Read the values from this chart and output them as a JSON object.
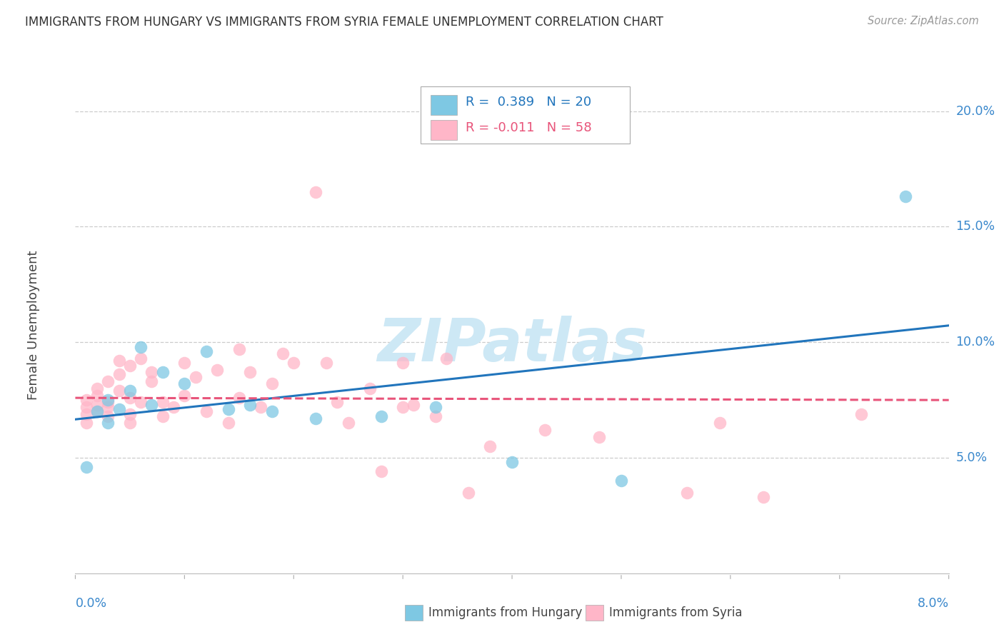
{
  "title": "IMMIGRANTS FROM HUNGARY VS IMMIGRANTS FROM SYRIA FEMALE UNEMPLOYMENT CORRELATION CHART",
  "source": "Source: ZipAtlas.com",
  "ylabel": "Female Unemployment",
  "x_range": [
    0.0,
    0.08
  ],
  "y_range": [
    0.0,
    0.215
  ],
  "y_ticks": [
    0.05,
    0.1,
    0.15,
    0.2
  ],
  "y_tick_labels": [
    "5.0%",
    "10.0%",
    "15.0%",
    "20.0%"
  ],
  "hungary_R": 0.389,
  "hungary_N": 20,
  "syria_R": -0.011,
  "syria_N": 58,
  "hungary_color": "#7ec8e3",
  "syria_color": "#ffb6c8",
  "hungary_line_color": "#2175bc",
  "syria_line_color": "#e8547a",
  "bg_color": "#ffffff",
  "watermark_color": "#cde8f5",
  "hungary_x": [
    0.001,
    0.002,
    0.003,
    0.003,
    0.004,
    0.005,
    0.006,
    0.007,
    0.008,
    0.01,
    0.012,
    0.014,
    0.016,
    0.018,
    0.022,
    0.028,
    0.033,
    0.04,
    0.05,
    0.076
  ],
  "hungary_y": [
    0.046,
    0.07,
    0.065,
    0.075,
    0.071,
    0.079,
    0.098,
    0.073,
    0.087,
    0.082,
    0.096,
    0.071,
    0.073,
    0.07,
    0.067,
    0.068,
    0.072,
    0.048,
    0.04,
    0.163
  ],
  "syria_x": [
    0.001,
    0.001,
    0.001,
    0.001,
    0.002,
    0.002,
    0.002,
    0.002,
    0.003,
    0.003,
    0.003,
    0.003,
    0.004,
    0.004,
    0.004,
    0.005,
    0.005,
    0.005,
    0.005,
    0.006,
    0.006,
    0.007,
    0.007,
    0.008,
    0.008,
    0.009,
    0.01,
    0.01,
    0.011,
    0.012,
    0.013,
    0.014,
    0.015,
    0.015,
    0.016,
    0.017,
    0.018,
    0.019,
    0.02,
    0.022,
    0.023,
    0.024,
    0.025,
    0.027,
    0.028,
    0.03,
    0.03,
    0.031,
    0.033,
    0.034,
    0.036,
    0.038,
    0.043,
    0.048,
    0.056,
    0.059,
    0.063,
    0.072
  ],
  "syria_y": [
    0.075,
    0.072,
    0.069,
    0.065,
    0.08,
    0.073,
    0.077,
    0.07,
    0.072,
    0.068,
    0.074,
    0.083,
    0.092,
    0.079,
    0.086,
    0.09,
    0.069,
    0.076,
    0.065,
    0.093,
    0.074,
    0.087,
    0.083,
    0.074,
    0.068,
    0.072,
    0.091,
    0.077,
    0.085,
    0.07,
    0.088,
    0.065,
    0.097,
    0.076,
    0.087,
    0.072,
    0.082,
    0.095,
    0.091,
    0.165,
    0.091,
    0.074,
    0.065,
    0.08,
    0.044,
    0.072,
    0.091,
    0.073,
    0.068,
    0.093,
    0.035,
    0.055,
    0.062,
    0.059,
    0.035,
    0.065,
    0.033,
    0.069
  ]
}
